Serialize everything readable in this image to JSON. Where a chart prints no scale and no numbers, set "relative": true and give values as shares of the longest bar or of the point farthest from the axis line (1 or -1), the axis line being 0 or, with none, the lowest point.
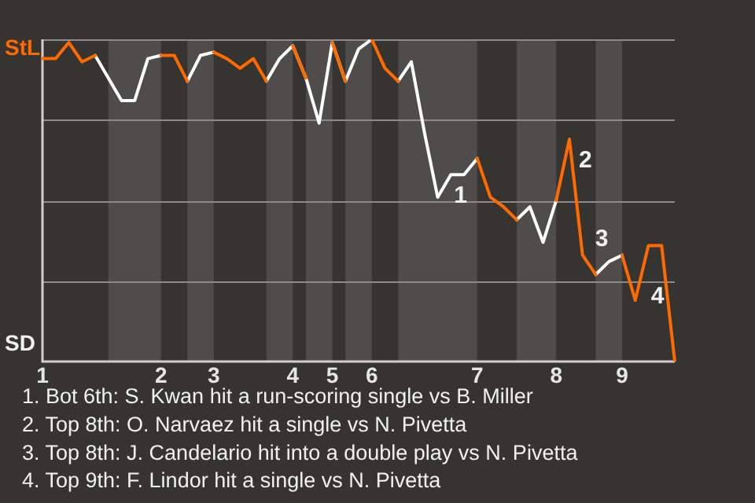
{
  "chart_data": {
    "type": "line",
    "relative": true,
    "categories": [
      "1",
      null,
      null,
      null,
      null,
      null,
      null,
      null,
      null,
      "2",
      null,
      null,
      null,
      "3",
      null,
      null,
      null,
      null,
      null,
      "4",
      null,
      null,
      "5",
      null,
      null,
      "6",
      null,
      null,
      null,
      null,
      null,
      null,
      null,
      "7",
      null,
      null,
      null,
      null,
      null,
      "8",
      null,
      null,
      null,
      null,
      "9",
      null,
      null,
      null,
      null
    ],
    "series": [
      {
        "color": "#ff6a00",
        "values": [
          0.94,
          0.94,
          0.99,
          0.93,
          0.95,
          null,
          null,
          null,
          null,
          0.95,
          0.95,
          0.87,
          null,
          0.96,
          0.94,
          0.91,
          0.94,
          0.87,
          null,
          0.98,
          0.88,
          null,
          0.99,
          0.87,
          null,
          1,
          0.91,
          0.87,
          null,
          null,
          null,
          null,
          null,
          0.63,
          0.51,
          0.48,
          0.44,
          null,
          null,
          0.5,
          0.69,
          0.33,
          0.27,
          null,
          0.33,
          0.19,
          0.36,
          0.36,
          0
        ]
      },
      {
        "color": "#ffffff",
        "values": [
          null,
          null,
          null,
          null,
          0.95,
          0.88,
          0.81,
          0.81,
          0.94,
          0.95,
          null,
          0.87,
          0.95,
          0.96,
          null,
          null,
          null,
          0.87,
          0.94,
          0.98,
          0.88,
          0.74,
          0.99,
          0.87,
          0.97,
          1,
          null,
          0.87,
          0.93,
          0.71,
          0.51,
          0.58,
          0.58,
          0.63,
          null,
          null,
          0.44,
          0.48,
          0.37,
          0.5,
          null,
          null,
          0.27,
          0.31,
          0.33,
          null,
          null,
          null,
          null
        ]
      }
    ],
    "grid": "y",
    "legend": false,
    "marker": "none",
    "tick_labels": "x",
    "annotations": [
      "StL",
      "SD",
      "1",
      "2",
      "3",
      "4",
      "1. Bot 6th: S. Kwan hit a run-scoring single vs B. Miller",
      "2. Top 8th: O. Narvaez hit a single vs N. Pivetta",
      "3. Top 8th: J. Candelario hit into a double play vs N. Pivetta",
      "4. Top 9th: F. Lindor hit a single vs N. Pivetta"
    ]
  }
}
